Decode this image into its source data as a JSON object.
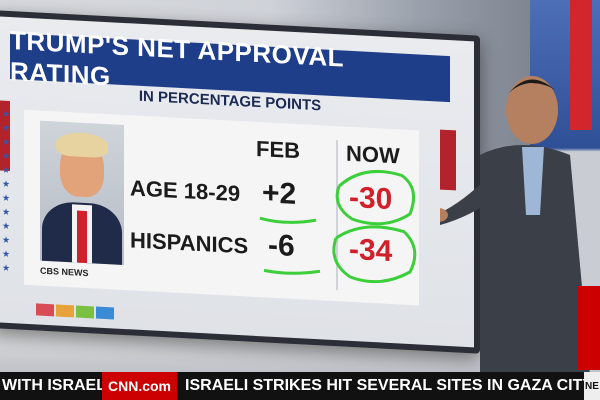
{
  "graphic": {
    "title": "TRUMP'S NET APPROVAL RATING",
    "subtitle": "IN PERCENTAGE POINTS",
    "source_label": "CBS NEWS",
    "columns": [
      "FEB",
      "NOW"
    ],
    "rows": [
      {
        "label": "AGE 18-29",
        "feb": "+2",
        "now": "-30"
      },
      {
        "label": "HISPANICS",
        "feb": "-6",
        "now": "-34"
      }
    ],
    "colors": {
      "title_bg": "#1f3e8a",
      "now_text": "#d1202a",
      "annotation": "#3ccf3a"
    }
  },
  "ticker": {
    "left_text": "WITH ISRAEL.",
    "network_logo": "CNN.com",
    "headline": "ISRAELI STRIKES HIT SEVERAL SITES IN GAZA CITY SUND",
    "tag": "NE"
  }
}
